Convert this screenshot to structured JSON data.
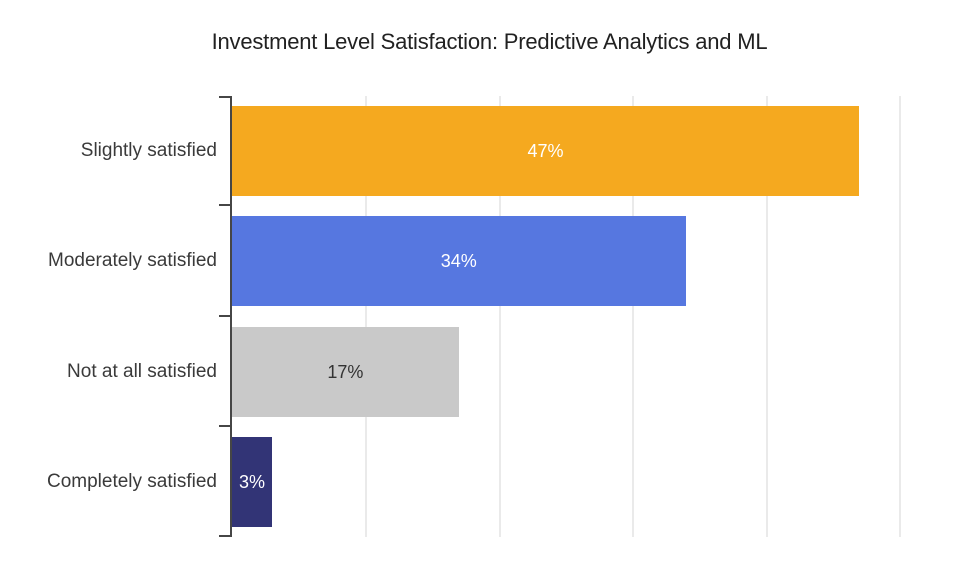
{
  "chart_data": {
    "type": "bar",
    "orientation": "horizontal",
    "title": "Investment Level Satisfaction: Predictive Analytics and ML",
    "categories": [
      "Slightly satisfied",
      "Moderately satisfied",
      "Not at all satisfied",
      "Completely satisfied"
    ],
    "values": [
      47,
      34,
      17,
      3
    ],
    "value_labels": [
      "47%",
      "34%",
      "17%",
      "3%"
    ],
    "bar_colors": [
      "#f5a91f",
      "#5677e0",
      "#c9c9c9",
      "#323476"
    ],
    "value_label_colors": [
      "#ffffff",
      "#ffffff",
      "#333333",
      "#ffffff"
    ],
    "xlabel": "",
    "ylabel": "",
    "xlim": [
      0,
      56
    ],
    "gridline_values": [
      10,
      20,
      30,
      40,
      50
    ],
    "gridline_labels_shown": false,
    "legend": "none",
    "gridline_color": "#eaeaea",
    "axis_color": "#464646"
  }
}
